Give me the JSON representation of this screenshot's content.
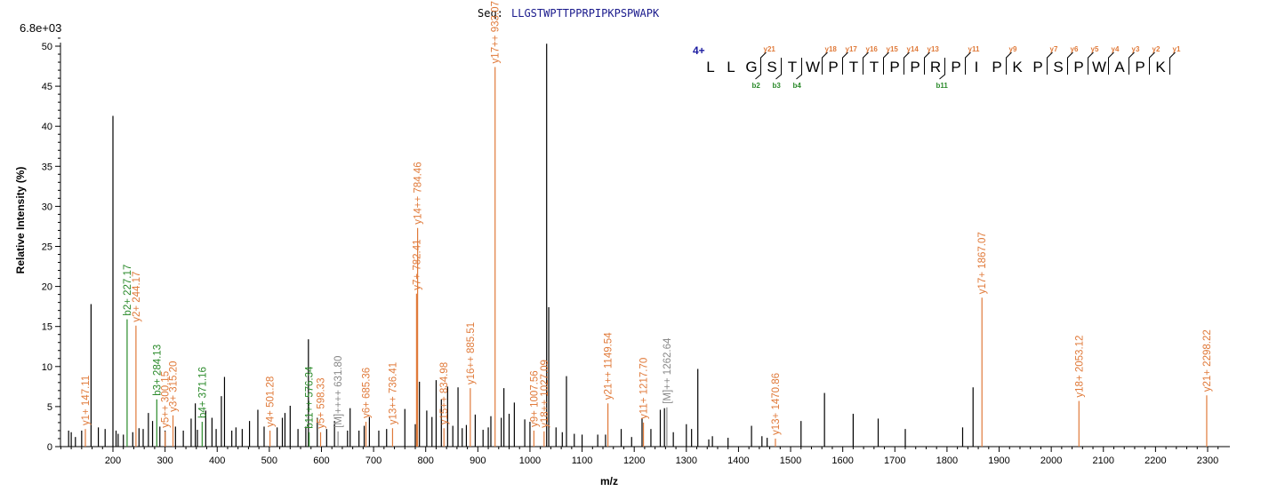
{
  "sequence": {
    "label": "Seq:",
    "value": "LLGSTWPTTPPRPIPKPSPWAPK",
    "charge": "4+",
    "residues": [
      "L",
      "L",
      "G",
      "S",
      "T",
      "W",
      "P",
      "T",
      "T",
      "P",
      "P",
      "R",
      "P",
      "I",
      "P",
      "K",
      "P",
      "S",
      "P",
      "W",
      "A",
      "P",
      "K"
    ],
    "y_ions": [
      {
        "label": "y21",
        "pos": 3
      },
      {
        "label": "y18",
        "pos": 6
      },
      {
        "label": "y17",
        "pos": 7
      },
      {
        "label": "y16",
        "pos": 8
      },
      {
        "label": "y15",
        "pos": 9
      },
      {
        "label": "y14",
        "pos": 10
      },
      {
        "label": "y13",
        "pos": 11
      },
      {
        "label": "y11",
        "pos": 13
      },
      {
        "label": "y9",
        "pos": 15
      },
      {
        "label": "y7",
        "pos": 17
      },
      {
        "label": "y6",
        "pos": 18
      },
      {
        "label": "y5",
        "pos": 19
      },
      {
        "label": "y4",
        "pos": 20
      },
      {
        "label": "y3",
        "pos": 21
      },
      {
        "label": "y2",
        "pos": 22
      },
      {
        "label": "y1",
        "pos": 23
      }
    ],
    "b_ions": [
      {
        "label": "b2",
        "pos": 3
      },
      {
        "label": "b3",
        "pos": 4
      },
      {
        "label": "b4",
        "pos": 5
      },
      {
        "label": "b11",
        "pos": 12
      }
    ]
  },
  "chart_data": {
    "type": "bar",
    "scale_label": "6.8e+03",
    "xlabel": "m/z",
    "ylabel": "Relative   Intensity (%)",
    "xlim": [
      80,
      2320
    ],
    "ylim": [
      0,
      51
    ],
    "xticks": [
      200,
      300,
      400,
      500,
      600,
      700,
      800,
      900,
      1000,
      1100,
      1200,
      1300,
      1400,
      1500,
      1600,
      1700,
      1800,
      1900,
      2000,
      2100,
      2200,
      2300
    ],
    "yticks": [
      0,
      5,
      10,
      15,
      20,
      25,
      30,
      35,
      40,
      45,
      50
    ],
    "colors": {
      "unmatched": "#000000",
      "y": "#e07a3a",
      "b": "#2a8a2a",
      "precursor": "#888888"
    },
    "peaks_unmatched": [
      [
        115,
        2
      ],
      [
        120,
        1.8
      ],
      [
        128,
        1.2
      ],
      [
        140,
        2
      ],
      [
        158,
        17.8
      ],
      [
        172,
        2.4
      ],
      [
        185,
        2.2
      ],
      [
        200,
        41.3
      ],
      [
        206,
        2
      ],
      [
        210,
        1.6
      ],
      [
        220,
        1.5
      ],
      [
        238,
        1.8
      ],
      [
        250,
        2.3
      ],
      [
        258,
        2.2
      ],
      [
        268,
        4.2
      ],
      [
        276,
        3.2
      ],
      [
        290,
        2.5
      ],
      [
        300,
        2
      ],
      [
        320,
        2.5
      ],
      [
        335,
        2
      ],
      [
        350,
        3.5
      ],
      [
        358,
        5.4
      ],
      [
        362,
        2.1
      ],
      [
        378,
        4.5
      ],
      [
        390,
        3.6
      ],
      [
        398,
        2.2
      ],
      [
        408,
        6.3
      ],
      [
        414,
        8.7
      ],
      [
        428,
        2
      ],
      [
        436,
        2.4
      ],
      [
        448,
        2.2
      ],
      [
        462,
        3.2
      ],
      [
        478,
        4.6
      ],
      [
        490,
        2.5
      ],
      [
        515,
        2.4
      ],
      [
        525,
        3.6
      ],
      [
        530,
        4.2
      ],
      [
        540,
        5.1
      ],
      [
        555,
        2.2
      ],
      [
        570,
        2.5
      ],
      [
        575,
        13.4
      ],
      [
        592,
        3.6
      ],
      [
        610,
        2.2
      ],
      [
        625,
        3.2
      ],
      [
        650,
        2
      ],
      [
        655,
        4.8
      ],
      [
        672,
        2
      ],
      [
        682,
        2.6
      ],
      [
        692,
        3.7
      ],
      [
        710,
        2
      ],
      [
        725,
        2.2
      ],
      [
        760,
        4.7
      ],
      [
        780,
        2.8
      ],
      [
        788,
        8.1
      ],
      [
        802,
        4.5
      ],
      [
        812,
        3.7
      ],
      [
        820,
        8.3
      ],
      [
        830,
        5.9
      ],
      [
        842,
        7.5
      ],
      [
        852,
        2.6
      ],
      [
        862,
        7.4
      ],
      [
        870,
        2.3
      ],
      [
        878,
        2.7
      ],
      [
        895,
        4
      ],
      [
        910,
        2.1
      ],
      [
        920,
        2.4
      ],
      [
        925,
        3.8
      ],
      [
        945,
        3.6
      ],
      [
        950,
        7.3
      ],
      [
        960,
        4.1
      ],
      [
        970,
        5.5
      ],
      [
        990,
        3.4
      ],
      [
        1000,
        3.1
      ],
      [
        1032,
        50.3
      ],
      [
        1036,
        17.4
      ],
      [
        1050,
        2.4
      ],
      [
        1062,
        1.8
      ],
      [
        1070,
        8.8
      ],
      [
        1085,
        1.6
      ],
      [
        1100,
        1.5
      ],
      [
        1130,
        1.5
      ],
      [
        1145,
        1.5
      ],
      [
        1175,
        2.2
      ],
      [
        1195,
        1.2
      ],
      [
        1215,
        3.5
      ],
      [
        1232,
        2.2
      ],
      [
        1250,
        4.6
      ],
      [
        1258,
        4.8
      ],
      [
        1275,
        1.8
      ],
      [
        1300,
        2.8
      ],
      [
        1310,
        2.2
      ],
      [
        1322,
        9.7
      ],
      [
        1343,
        0.9
      ],
      [
        1350,
        1.3
      ],
      [
        1380,
        1.1
      ],
      [
        1425,
        2.6
      ],
      [
        1445,
        1.3
      ],
      [
        1455,
        1.1
      ],
      [
        1520,
        3.2
      ],
      [
        1565,
        6.7
      ],
      [
        1620,
        4.1
      ],
      [
        1668,
        3.5
      ],
      [
        1720,
        2.2
      ],
      [
        1830,
        2.4
      ],
      [
        1850,
        7.4
      ]
    ],
    "peaks_labeled": [
      {
        "x": 147.11,
        "y": 2.2,
        "label": "y1+ 147.11",
        "type": "y"
      },
      {
        "x": 227.17,
        "y": 15.9,
        "label": "b2+ 227.17",
        "type": "b"
      },
      {
        "x": 244.17,
        "y": 15.1,
        "label": "y2+ 244.17",
        "type": "y"
      },
      {
        "x": 284.13,
        "y": 5.9,
        "label": "b3+ 284.13",
        "type": "b"
      },
      {
        "x": 300.15,
        "y": 1.9,
        "label": "y5++ 300.15",
        "type": "y"
      },
      {
        "x": 315.2,
        "y": 3.9,
        "label": "y3+ 315.20",
        "type": "y"
      },
      {
        "x": 371.16,
        "y": 3.1,
        "label": "b4+ 371.16",
        "type": "b"
      },
      {
        "x": 501.28,
        "y": 2,
        "label": "y4+ 501.28",
        "type": "y"
      },
      {
        "x": 576.34,
        "y": 1.8,
        "label": "b11++ 576.34",
        "type": "b"
      },
      {
        "x": 598.33,
        "y": 1.8,
        "label": "y5+ 598.33",
        "type": "y"
      },
      {
        "x": 631.8,
        "y": 1.9,
        "label": "[M]++++ 631.80",
        "type": "precursor"
      },
      {
        "x": 685.36,
        "y": 3.1,
        "label": "y6+ 685.36",
        "type": "y"
      },
      {
        "x": 736.41,
        "y": 2.3,
        "label": "y13++ 736.41",
        "type": "y"
      },
      {
        "x": 782.41,
        "y": 19.1,
        "label": "y7+ 782.41",
        "type": "y"
      },
      {
        "x": 784.46,
        "y": 27.3,
        "label": "y14++ 784.46",
        "type": "y"
      },
      {
        "x": 834.98,
        "y": 2.3,
        "label": "y15++ 834.98",
        "type": "y"
      },
      {
        "x": 885.51,
        "y": 7.3,
        "label": "y16++ 885.51",
        "type": "y"
      },
      {
        "x": 933.07,
        "y": 47.4,
        "label": "y17++ 933.07",
        "type": "y"
      },
      {
        "x": 1007.56,
        "y": 2,
        "label": "y9+ 1007.56",
        "type": "y"
      },
      {
        "x": 1027.09,
        "y": 1.9,
        "label": "y18++ 1027.09",
        "type": "y"
      },
      {
        "x": 1149.54,
        "y": 5.4,
        "label": "y21++ 1149.54",
        "type": "y"
      },
      {
        "x": 1217.7,
        "y": 3,
        "label": "y11+ 1217.70",
        "type": "y"
      },
      {
        "x": 1262.64,
        "y": 4.9,
        "label": "[M]++ 1262.64",
        "type": "precursor"
      },
      {
        "x": 1470.86,
        "y": 1,
        "label": "y13+ 1470.86",
        "type": "y"
      },
      {
        "x": 1867.07,
        "y": 18.6,
        "label": "y17+ 1867.07",
        "type": "y"
      },
      {
        "x": 2053.12,
        "y": 5.7,
        "label": "y18+ 2053.12",
        "type": "y"
      },
      {
        "x": 2298.22,
        "y": 6.4,
        "label": "y21+ 2298.22",
        "type": "y"
      }
    ]
  }
}
